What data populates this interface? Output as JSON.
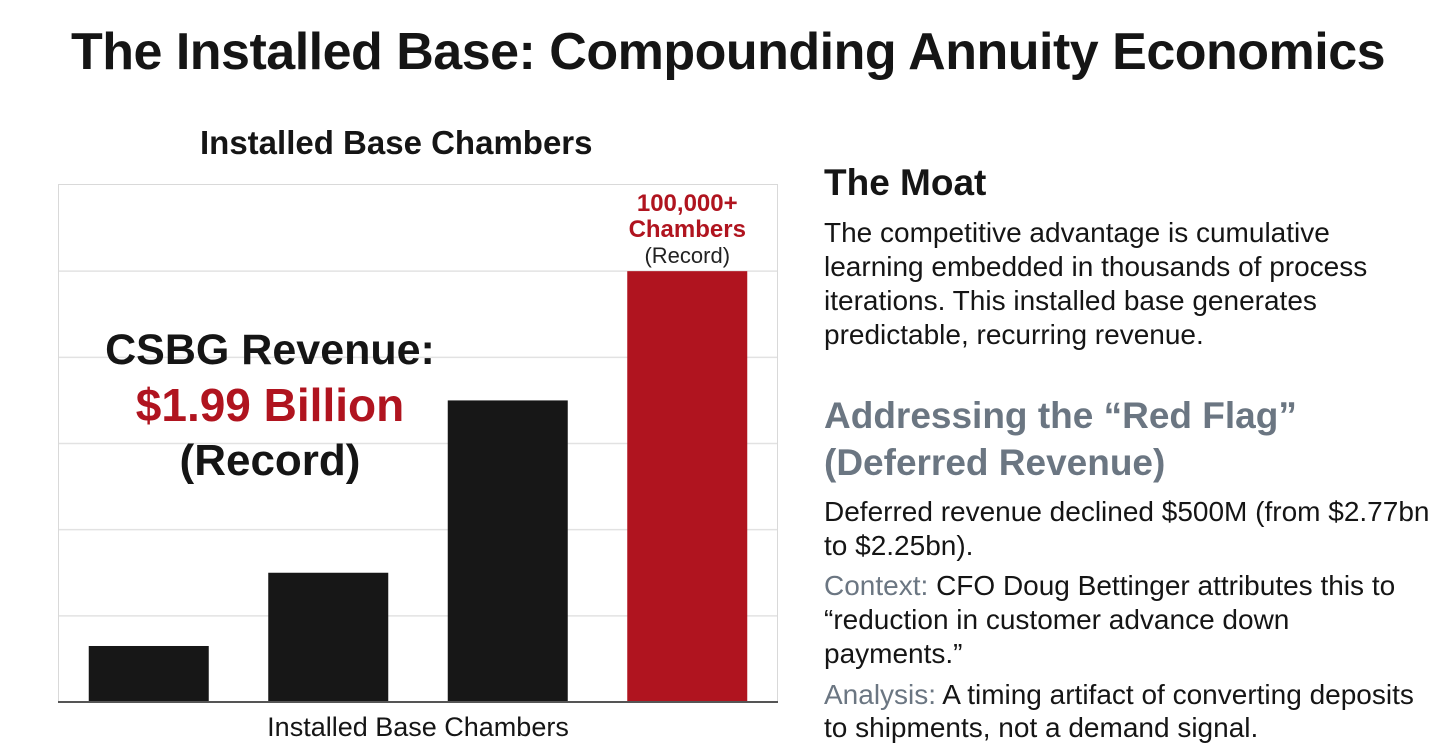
{
  "page": {
    "title": "The Installed Base: Compounding Annuity Economics"
  },
  "chart_data": {
    "type": "bar",
    "title": "Installed Base Chambers",
    "xlabel": "Installed Base Chambers",
    "ylabel": "",
    "categories": [
      "",
      "",
      "",
      ""
    ],
    "values": [
      13000,
      30000,
      70000,
      100000
    ],
    "ylim": [
      0,
      120000
    ],
    "grid": true,
    "colors": [
      "#171717",
      "#171717",
      "#171717",
      "#b0141f"
    ],
    "bar_label": {
      "value": "100,000+",
      "unit": "Chambers",
      "note": "(Record)"
    },
    "annotation": {
      "title": "CSBG Revenue:",
      "value": "$1.99 Billion",
      "note": "(Record)"
    }
  },
  "right_panel": {
    "moat_heading": "The Moat",
    "moat_body": "The competitive advantage is cumulative learning embedded in thousands of process iterations. This installed base generates predictable, recurring revenue.",
    "red_flag_heading": "Addressing the “Red Flag” (Deferred Revenue)",
    "deferred_body": "Deferred revenue declined $500M (from $2.77bn to $2.25bn).",
    "context_label": "Context:",
    "context_body": "CFO Doug Bettinger attributes this to “reduction in customer advance down payments.”",
    "analysis_label": "Analysis:",
    "analysis_body": "A timing artifact of converting deposits to shipments, not a demand signal."
  }
}
